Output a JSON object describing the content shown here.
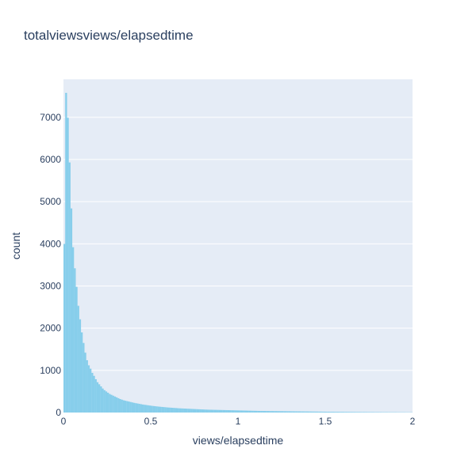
{
  "chart_data": {
    "type": "bar",
    "title": "totalviewsviews/elapsedtime",
    "xlabel": "views/elapsedtime",
    "ylabel": "count",
    "xlim": [
      0,
      2
    ],
    "ylim": [
      0,
      7900
    ],
    "x_ticks": [
      {
        "v": 0,
        "label": "0"
      },
      {
        "v": 0.5,
        "label": "0.5"
      },
      {
        "v": 1,
        "label": "1"
      },
      {
        "v": 1.5,
        "label": "1.5"
      },
      {
        "v": 2,
        "label": "2"
      }
    ],
    "y_ticks": [
      {
        "v": 0,
        "label": "0"
      },
      {
        "v": 1000,
        "label": "1000"
      },
      {
        "v": 2000,
        "label": "2000"
      },
      {
        "v": 3000,
        "label": "3000"
      },
      {
        "v": 4000,
        "label": "4000"
      },
      {
        "v": 5000,
        "label": "5000"
      },
      {
        "v": 6000,
        "label": "6000"
      },
      {
        "v": 7000,
        "label": "7000"
      }
    ],
    "grid": true,
    "bar_color": "#87ceeb",
    "plot_bg": "#e5ecf6",
    "bin_width": 0.01,
    "bin_start": 0,
    "values": [
      4000,
      7580,
      6990,
      5930,
      4840,
      3920,
      3420,
      2980,
      2530,
      2210,
      1900,
      1650,
      1420,
      1240,
      1120,
      1040,
      940,
      870,
      790,
      720,
      670,
      620,
      570,
      530,
      500,
      470,
      440,
      420,
      400,
      380,
      360,
      340,
      320,
      305,
      290,
      280,
      270,
      260,
      250,
      240,
      230,
      222,
      214,
      206,
      198,
      190,
      184,
      178,
      172,
      166,
      160,
      155,
      150,
      145,
      141,
      137,
      133,
      129,
      125,
      121,
      118,
      115,
      112,
      109,
      106,
      103,
      100,
      98,
      96,
      94,
      92,
      90,
      88,
      86,
      84,
      82,
      80,
      78,
      76,
      74,
      72,
      70,
      68,
      67,
      66,
      65,
      64,
      63,
      62,
      61,
      60,
      59,
      58,
      57,
      56,
      55,
      54,
      53,
      52,
      51,
      50,
      49,
      48,
      47,
      46,
      45,
      44,
      43,
      42,
      41,
      40,
      39,
      38,
      38,
      37,
      37,
      36,
      36,
      35,
      35,
      34,
      34,
      33,
      33,
      32,
      32,
      31,
      31,
      30,
      30,
      29,
      29,
      28,
      28,
      27,
      27,
      26,
      26,
      25,
      25,
      24,
      24,
      23,
      23,
      22,
      22,
      21,
      21,
      20,
      20,
      19,
      19,
      18,
      18,
      18,
      17,
      17,
      17,
      16,
      16,
      16,
      15,
      15,
      15,
      14,
      14,
      14,
      13,
      13,
      13,
      12,
      12,
      12,
      12,
      11,
      11,
      11,
      11,
      10,
      10,
      10,
      10,
      9,
      9,
      9,
      9,
      8,
      8,
      8,
      8,
      8,
      7,
      7,
      7,
      7,
      7,
      6,
      6,
      6,
      6
    ]
  }
}
